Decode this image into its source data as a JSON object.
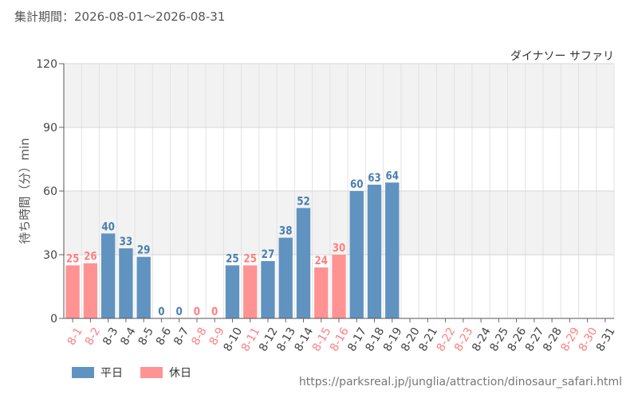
{
  "period_label": "集計期間：2026-08-01～2026-08-31",
  "source_url": "https://parksreal.jp/junglia/attraction/dinosaur_safari.html",
  "colors": {
    "weekday": "#6193c0",
    "holiday": "#ff9393",
    "weekday_text": "#4a7fb0",
    "holiday_text": "#ff7f7f",
    "band": "#f2f2f2",
    "grid": "#e2e2e2"
  },
  "chart_data": {
    "type": "bar",
    "title": "ダイナソー サファリ",
    "ylabel": "待ち時間（分）min",
    "xlabel": "",
    "ylim": [
      0,
      120
    ],
    "yticks": [
      0,
      30,
      60,
      90,
      120
    ],
    "grid": true,
    "legend_position": "bottom-left",
    "categories": [
      "8-1",
      "8-2",
      "8-3",
      "8-4",
      "8-5",
      "8-6",
      "8-7",
      "8-8",
      "8-9",
      "8-10",
      "8-11",
      "8-12",
      "8-13",
      "8-14",
      "8-15",
      "8-16",
      "8-17",
      "8-18",
      "8-19",
      "8-20",
      "8-21",
      "8-22",
      "8-23",
      "8-24",
      "8-25",
      "8-26",
      "8-27",
      "8-28",
      "8-29",
      "8-30",
      "8-31"
    ],
    "day_types": [
      "holiday",
      "holiday",
      "weekday",
      "weekday",
      "weekday",
      "weekday",
      "weekday",
      "holiday",
      "holiday",
      "weekday",
      "holiday",
      "weekday",
      "weekday",
      "weekday",
      "holiday",
      "holiday",
      "weekday",
      "weekday",
      "weekday",
      "weekday",
      "weekday",
      "holiday",
      "holiday",
      "weekday",
      "weekday",
      "weekday",
      "weekday",
      "weekday",
      "holiday",
      "holiday",
      "weekday"
    ],
    "values": [
      25,
      26,
      40,
      33,
      29,
      0,
      0,
      0,
      0,
      25,
      25,
      27,
      38,
      52,
      24,
      30,
      60,
      63,
      64,
      null,
      null,
      null,
      null,
      null,
      null,
      null,
      null,
      null,
      null,
      null,
      null
    ],
    "series": [
      {
        "name": "平日",
        "key": "weekday"
      },
      {
        "name": "休日",
        "key": "holiday"
      }
    ]
  }
}
